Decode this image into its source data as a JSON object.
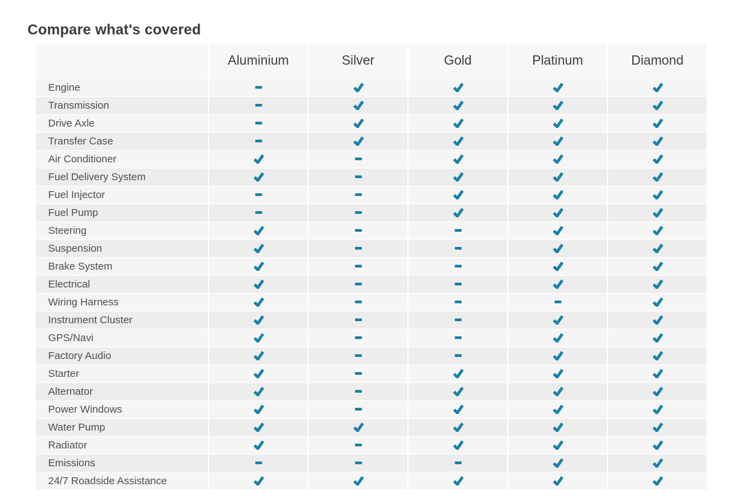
{
  "title": "Compare what's covered",
  "colors": {
    "accent_teal": "#1a81a7",
    "row_odd_bg": "#f5f5f5",
    "row_even_bg": "#ededed",
    "header_bg": "#f7f7f7",
    "title_text": "#3a3a3a",
    "header_text": "#3d3d3d",
    "label_text": "#4d4d4d"
  },
  "table": {
    "columns": [
      "Aluminium",
      "Silver",
      "Gold",
      "Platinum",
      "Diamond"
    ],
    "icons": {
      "covered": "check-icon",
      "not_covered": "dash-icon"
    },
    "rows": [
      {
        "label": "Engine",
        "covered": [
          false,
          true,
          true,
          true,
          true
        ]
      },
      {
        "label": "Transmission",
        "covered": [
          false,
          true,
          true,
          true,
          true
        ]
      },
      {
        "label": "Drive Axle",
        "covered": [
          false,
          true,
          true,
          true,
          true
        ]
      },
      {
        "label": "Transfer Case",
        "covered": [
          false,
          true,
          true,
          true,
          true
        ]
      },
      {
        "label": "Air Conditioner",
        "covered": [
          true,
          false,
          true,
          true,
          true
        ]
      },
      {
        "label": "Fuel Delivery System",
        "covered": [
          true,
          false,
          true,
          true,
          true
        ]
      },
      {
        "label": "Fuel Injector",
        "covered": [
          false,
          false,
          true,
          true,
          true
        ]
      },
      {
        "label": "Fuel Pump",
        "covered": [
          false,
          false,
          true,
          true,
          true
        ]
      },
      {
        "label": "Steering",
        "covered": [
          true,
          false,
          false,
          true,
          true
        ]
      },
      {
        "label": "Suspension",
        "covered": [
          true,
          false,
          false,
          true,
          true
        ]
      },
      {
        "label": "Brake System",
        "covered": [
          true,
          false,
          false,
          true,
          true
        ]
      },
      {
        "label": "Electrical",
        "covered": [
          true,
          false,
          false,
          true,
          true
        ]
      },
      {
        "label": "Wiring Harness",
        "covered": [
          true,
          false,
          false,
          false,
          true
        ]
      },
      {
        "label": "Instrument Cluster",
        "covered": [
          true,
          false,
          false,
          true,
          true
        ]
      },
      {
        "label": "GPS/Navi",
        "covered": [
          true,
          false,
          false,
          true,
          true
        ]
      },
      {
        "label": "Factory Audio",
        "covered": [
          true,
          false,
          false,
          true,
          true
        ]
      },
      {
        "label": "Starter",
        "covered": [
          true,
          false,
          true,
          true,
          true
        ]
      },
      {
        "label": "Alternator",
        "covered": [
          true,
          false,
          true,
          true,
          true
        ]
      },
      {
        "label": "Power Windows",
        "covered": [
          true,
          false,
          true,
          true,
          true
        ]
      },
      {
        "label": "Water Pump",
        "covered": [
          true,
          true,
          true,
          true,
          true
        ]
      },
      {
        "label": "Radiator",
        "covered": [
          true,
          false,
          true,
          true,
          true
        ]
      },
      {
        "label": "Emissions",
        "covered": [
          false,
          false,
          false,
          true,
          true
        ]
      },
      {
        "label": "24/7 Roadside Assistance",
        "covered": [
          true,
          true,
          true,
          true,
          true
        ]
      }
    ]
  }
}
